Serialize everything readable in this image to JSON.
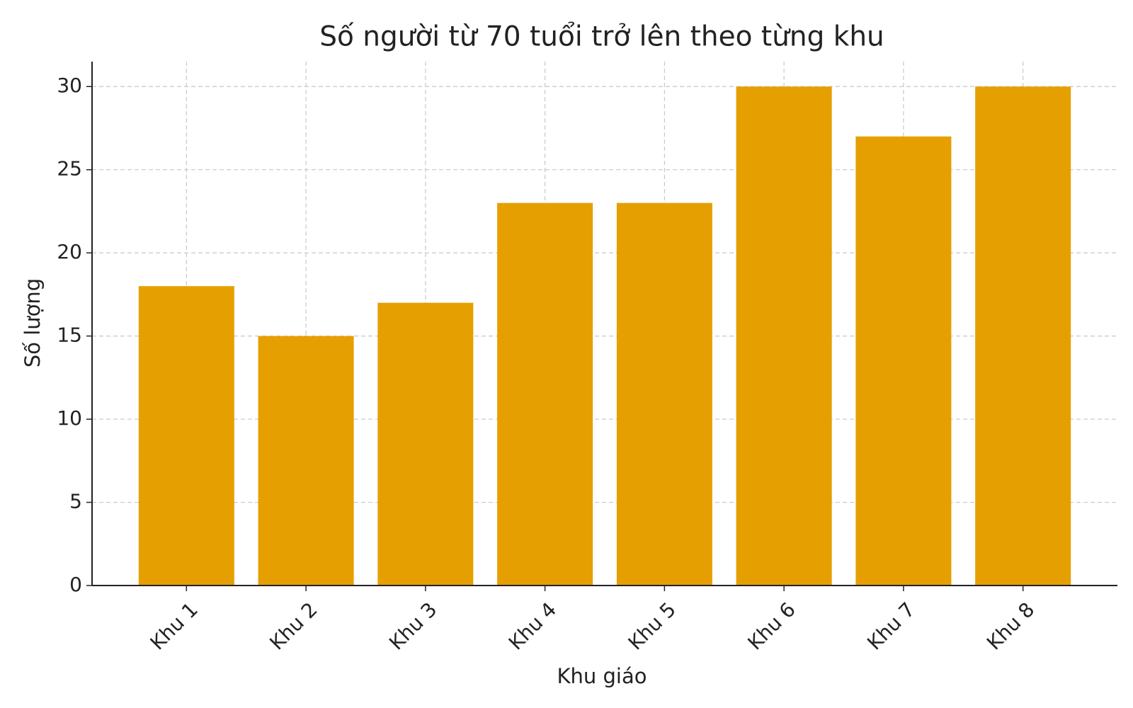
{
  "chart_data": {
    "type": "bar",
    "title": "Số người từ 70 tuổi trở lên theo từng khu",
    "x_label": "Khu giáo",
    "y_label": "Số lượng",
    "categories": [
      "Khu 1",
      "Khu 2",
      "Khu 3",
      "Khu 4",
      "Khu 5",
      "Khu 6",
      "Khu 7",
      "Khu 8"
    ],
    "values": [
      18,
      15,
      17,
      23,
      23,
      30,
      27,
      30
    ],
    "color": "#e69f00",
    "ylim": [
      0,
      31.5
    ],
    "yticks": [
      0,
      5,
      10,
      15,
      20,
      25,
      30
    ],
    "grid": true
  }
}
